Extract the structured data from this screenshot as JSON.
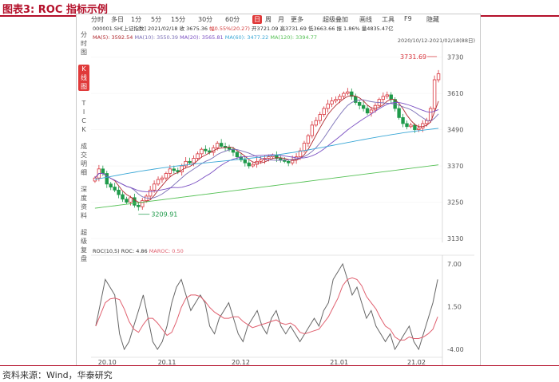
{
  "figure_title": "图表3:  ROC 指标示例",
  "source": "资料来源：Wind，华泰研究",
  "left_tabs": [
    "分时图",
    "K线图",
    "TICK",
    "成交明细",
    "深度资料",
    "超级复盘"
  ],
  "toolbar": {
    "items": [
      "分时",
      "多日",
      "1分",
      "5分",
      "15分",
      "30分",
      "60分",
      "日",
      "周",
      "月",
      "更多"
    ],
    "active": "日",
    "right_items": [
      "超级叠加",
      "画线",
      "工具",
      "F9",
      "隐藏"
    ]
  },
  "info": {
    "code": "000001.SH[上证指数]",
    "date": "2021/02/18",
    "close": "收 3675.36",
    "change": "幅0.55%(20.27)",
    "open": "开3721.09",
    "high": "高3731.69",
    "low": "低3663.66",
    "amplitude": "振 1.86%",
    "amount": "量4835.47亿",
    "range": "2020/10/12-2021/02/18(88日)"
  },
  "ma": {
    "ma5": "MA(5): 3592.54",
    "ma10": "MA(10): 3550.39",
    "ma20": "MA(20): 3565.81",
    "ma60": "MA(60): 3477.22",
    "ma120": "MA(120): 3394.77",
    "colors": {
      "ma5": "#b0282e",
      "ma10": "#7a6fb6",
      "ma20": "#7a4fc2",
      "ma60": "#3aa7d6",
      "ma120": "#55c155"
    }
  },
  "price_axis": [
    "3730",
    "3610",
    "3490",
    "3370",
    "3250",
    "3130"
  ],
  "annotations": {
    "high_label": "3731.69",
    "low_label": "3209.91"
  },
  "roc": {
    "header": "ROC(10,5)",
    "roc_value": "ROC: 4.86",
    "maroc_value": "MAROC: 0.50",
    "axis": [
      "7.00",
      "1.50",
      "-4.00"
    ],
    "colors": {
      "roc": "#666666",
      "maroc": "#e0606f"
    }
  },
  "date_axis": [
    "20.10",
    "20.11",
    "20.12",
    "21.01",
    "21.02"
  ],
  "chart_data": {
    "type": "line",
    "title": "",
    "candles_close": [
      3330,
      3360,
      3345,
      3310,
      3300,
      3290,
      3275,
      3260,
      3250,
      3265,
      3240,
      3235,
      3255,
      3270,
      3290,
      3310,
      3325,
      3330,
      3345,
      3360,
      3355,
      3350,
      3370,
      3385,
      3380,
      3395,
      3410,
      3425,
      3420,
      3415,
      3430,
      3445,
      3435,
      3430,
      3425,
      3415,
      3400,
      3390,
      3380,
      3370,
      3375,
      3385,
      3390,
      3395,
      3400,
      3405,
      3395,
      3390,
      3385,
      3380,
      3390,
      3400,
      3420,
      3445,
      3470,
      3505,
      3520,
      3540,
      3560,
      3575,
      3585,
      3590,
      3600,
      3610,
      3615,
      3600,
      3580,
      3570,
      3560,
      3545,
      3555,
      3570,
      3590,
      3600,
      3605,
      3590,
      3560,
      3530,
      3510,
      3500,
      3505,
      3490,
      3495,
      3510,
      3520,
      3560,
      3655,
      3675
    ],
    "ylim": [
      3130,
      3750
    ],
    "roc_series": {
      "name": "ROC",
      "ylim": [
        -4.5,
        7.5
      ]
    },
    "maroc_series": {
      "name": "MAROC"
    }
  }
}
